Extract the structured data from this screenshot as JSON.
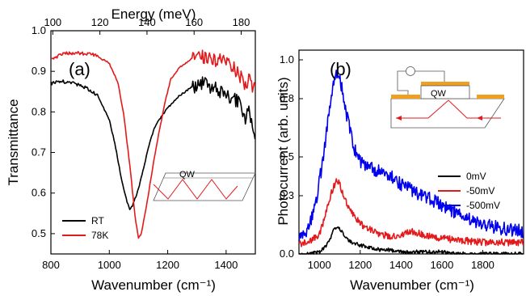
{
  "chart_data": [
    {
      "type": "line",
      "panel_label": "(a)",
      "xlabel": "Wavenumber (cm⁻¹)",
      "ylabel": "Transmittance",
      "top_xlabel": "Energy (meV)",
      "xlim": [
        800,
        1500
      ],
      "ylim": [
        0.45,
        1.0
      ],
      "top_xlim_meV": [
        99.2,
        186.0
      ],
      "x_ticks": [
        "800",
        "1000",
        "1200",
        "1400"
      ],
      "y_ticks": [
        "0.5",
        "0.6",
        "0.7",
        "0.8",
        "0.9",
        "1.0"
      ],
      "top_ticks": [
        "100",
        "120",
        "140",
        "160",
        "180"
      ],
      "legend_position": "bottom-left",
      "inset_label": "QW",
      "series": [
        {
          "name": "RT",
          "color": "#000000",
          "x": [
            800,
            840,
            880,
            920,
            960,
            1000,
            1020,
            1040,
            1060,
            1070,
            1080,
            1100,
            1120,
            1140,
            1160,
            1180,
            1200,
            1240,
            1280,
            1320,
            1360,
            1380,
            1400,
            1420,
            1440,
            1460,
            1480,
            1500
          ],
          "y": [
            0.87,
            0.875,
            0.87,
            0.86,
            0.84,
            0.78,
            0.72,
            0.64,
            0.58,
            0.56,
            0.57,
            0.61,
            0.67,
            0.73,
            0.77,
            0.79,
            0.81,
            0.84,
            0.86,
            0.87,
            0.86,
            0.85,
            0.84,
            0.83,
            0.83,
            0.78,
            0.8,
            0.74
          ]
        },
        {
          "name": "78K",
          "color": "#e31a1c",
          "x": [
            800,
            850,
            900,
            950,
            1000,
            1030,
            1050,
            1070,
            1090,
            1100,
            1110,
            1130,
            1150,
            1170,
            1190,
            1210,
            1240,
            1280,
            1320,
            1360,
            1400,
            1420,
            1440,
            1460,
            1480,
            1500
          ],
          "y": [
            0.93,
            0.945,
            0.945,
            0.94,
            0.92,
            0.87,
            0.79,
            0.67,
            0.53,
            0.49,
            0.5,
            0.58,
            0.67,
            0.75,
            0.82,
            0.88,
            0.91,
            0.93,
            0.935,
            0.93,
            0.92,
            0.91,
            0.9,
            0.87,
            0.88,
            0.85
          ]
        }
      ]
    },
    {
      "type": "line",
      "panel_label": "(b)",
      "xlabel": "Wavenumber (cm⁻¹)",
      "ylabel": "Photocurrent (arb. units)",
      "xlim": [
        900,
        2000
      ],
      "ylim": [
        0,
        1.05
      ],
      "x_ticks": [
        "1000",
        "1200",
        "1400",
        "1600",
        "1800"
      ],
      "y_ticks": [
        "0.0",
        "0.3",
        "0.5",
        "0.8",
        "1.0"
      ],
      "legend_position": "center-right",
      "inset_label": "QW",
      "series": [
        {
          "name": "0mV",
          "color": "#000000",
          "x": [
            900,
            950,
            1000,
            1040,
            1070,
            1090,
            1110,
            1140,
            1180,
            1220,
            1260,
            1300,
            1350,
            1400,
            1450,
            1500,
            1600,
            1700,
            1800,
            1900,
            2000
          ],
          "y": [
            0.0,
            0.0,
            0.01,
            0.05,
            0.12,
            0.14,
            0.12,
            0.07,
            0.05,
            0.04,
            0.03,
            0.02,
            0.02,
            0.01,
            0.01,
            0.01,
            0.01,
            0.0,
            0.0,
            0.0,
            0.0
          ]
        },
        {
          "name": "-50mV",
          "color": "#e31a1c",
          "x": [
            900,
            950,
            1000,
            1030,
            1060,
            1080,
            1090,
            1110,
            1140,
            1180,
            1220,
            1260,
            1300,
            1350,
            1400,
            1450,
            1500,
            1550,
            1600,
            1700,
            1800,
            1900,
            2000
          ],
          "y": [
            0.05,
            0.06,
            0.1,
            0.2,
            0.32,
            0.37,
            0.38,
            0.33,
            0.25,
            0.18,
            0.14,
            0.12,
            0.1,
            0.09,
            0.1,
            0.12,
            0.1,
            0.09,
            0.08,
            0.07,
            0.06,
            0.06,
            0.06
          ]
        },
        {
          "name": "-500mV",
          "color": "#0000ee",
          "x": [
            900,
            940,
            980,
            1020,
            1050,
            1070,
            1090,
            1110,
            1140,
            1170,
            1200,
            1230,
            1260,
            1300,
            1350,
            1400,
            1450,
            1500,
            1550,
            1600,
            1650,
            1700,
            1750,
            1800,
            1850,
            1900,
            1950,
            2000
          ],
          "y": [
            0.08,
            0.12,
            0.25,
            0.5,
            0.75,
            0.88,
            0.93,
            0.85,
            0.68,
            0.55,
            0.48,
            0.46,
            0.44,
            0.42,
            0.4,
            0.36,
            0.33,
            0.3,
            0.28,
            0.25,
            0.22,
            0.2,
            0.17,
            0.16,
            0.14,
            0.13,
            0.12,
            0.12
          ]
        }
      ]
    }
  ]
}
